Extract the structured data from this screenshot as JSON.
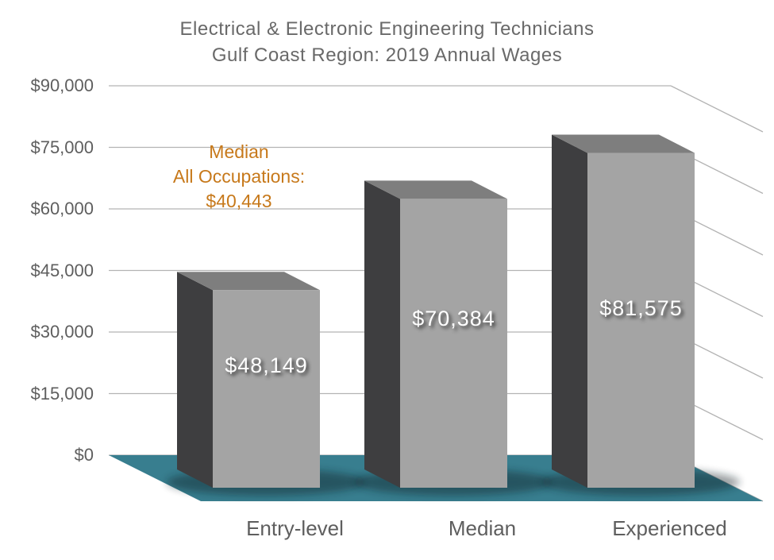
{
  "page": {
    "background": "#FFFFFF"
  },
  "title": {
    "line1": "Electrical & Electronic Engineering Technicians",
    "line2": "Gulf Coast Region: 2019 Annual Wages"
  },
  "annotation": {
    "line1": "Median",
    "line2": "All Occupations:",
    "line3": "$40,443",
    "value": 40443
  },
  "chart_data": {
    "type": "bar",
    "projection": "3d",
    "title": "Electrical & Electronic Engineering Technicians — Gulf Coast Region: 2019 Annual Wages",
    "categories": [
      "Entry-level",
      "Median",
      "Experienced"
    ],
    "values": [
      48149,
      70384,
      81575
    ],
    "value_labels": [
      "$48,149",
      "$70,384",
      "$81,575"
    ],
    "annotation_text": "Median All Occupations: $40,443",
    "annotation_value": 40443,
    "xlabel": "",
    "ylabel": "",
    "ylim": [
      0,
      90000
    ],
    "y_tick_interval": 15000,
    "y_tick_values": [
      0,
      15000,
      30000,
      45000,
      60000,
      75000,
      90000
    ],
    "y_tick_labels": [
      "$0",
      "$15,000",
      "$30,000",
      "$45,000",
      "$60,000",
      "$75,000",
      "$90,000"
    ],
    "grid": true,
    "legend_position": "none"
  },
  "colors": {
    "floor": "#387E8F",
    "bar_front": "#A4A4A4",
    "bar_top": "#7E7E7E",
    "bar_side": "#3E3E40",
    "gridline": "#B3B3B3",
    "shadow": "#0C1E24",
    "title_text": "#696969",
    "axis_text": "#5E5E5E",
    "annotation_text": "#C7791B",
    "bar_label_text": "#FFFFFF"
  }
}
